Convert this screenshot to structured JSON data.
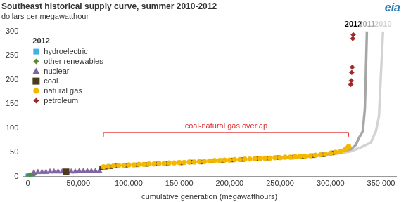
{
  "chart_data": {
    "type": "scatter",
    "title": "Southeast historical supply curve, summer 2010-2012",
    "subtitle": "dollars per megawatthour",
    "x_label": "cumulative generation (megawatthours)",
    "logo_text": "eia",
    "legend": "upper left",
    "legend_title": "2012",
    "grid": false,
    "xlim": [
      -5000,
      365000
    ],
    "xticks": [
      0,
      {
        "value": 50000,
        "label": "50,000"
      },
      {
        "value": 100000,
        "label": "100,000"
      },
      {
        "value": 150000,
        "label": "150,000"
      },
      {
        "value": 200000,
        "label": "200,000"
      },
      {
        "value": 250000,
        "label": "250,000"
      },
      {
        "value": 300000,
        "label": "300,000"
      },
      {
        "value": 350000,
        "label": "350,000"
      }
    ],
    "ylim": [
      0,
      300
    ],
    "yticks": [
      0,
      50,
      100,
      150,
      200,
      250,
      300
    ],
    "annotation": {
      "text": "coal-natural gas overlap",
      "color": "#e03030"
    },
    "series": [
      {
        "name": "hydroelectric",
        "color": "#3fb1e3",
        "marker": "square",
        "x": [
          0,
          1000,
          2000,
          3000,
          4000
        ],
        "values": [
          2,
          2,
          3,
          3,
          4
        ]
      },
      {
        "name": "other renewables",
        "color": "#5a8a2c",
        "marker": "diamond",
        "x": [
          500,
          1500,
          3000,
          5000,
          6500
        ],
        "values": [
          1,
          2,
          3,
          4,
          5
        ]
      },
      {
        "name": "nuclear",
        "color": "#8064a2",
        "marker": "triangle",
        "x": [
          6000,
          10000,
          14000,
          18000,
          22000,
          26000,
          30000,
          34000,
          43000,
          47000,
          51000,
          55000,
          59000,
          63000,
          67000,
          71000
        ],
        "values": [
          8,
          9,
          9,
          9,
          10,
          10,
          10,
          10,
          10,
          10,
          11,
          11,
          11,
          11,
          11,
          11
        ]
      },
      {
        "name": "coal",
        "color": "#4d3a1a",
        "marker": "square",
        "x": [
          38000,
          73000,
          77000,
          82000,
          88000,
          97000,
          108000,
          118000,
          128000,
          138000,
          152000,
          162000,
          172000,
          183000,
          193000,
          203000,
          213000,
          228000,
          238000,
          248000,
          262000,
          272000,
          283000,
          293000,
          302000
        ],
        "values": [
          10,
          18,
          19,
          20,
          22,
          23,
          24,
          25,
          26,
          27,
          28,
          30,
          30,
          32,
          33,
          34,
          35,
          37,
          38,
          39,
          40,
          41,
          43,
          45,
          49
        ]
      },
      {
        "name": "natural gas",
        "color": "#f5b800",
        "marker": "circle",
        "x": [
          75000,
          80000,
          85000,
          90000,
          95000,
          100000,
          105000,
          110000,
          115000,
          120000,
          125000,
          130000,
          135000,
          140000,
          145000,
          150000,
          155000,
          160000,
          165000,
          170000,
          175000,
          180000,
          185000,
          190000,
          195000,
          200000,
          205000,
          210000,
          215000,
          220000,
          225000,
          230000,
          235000,
          240000,
          245000,
          250000,
          255000,
          260000,
          265000,
          270000,
          275000,
          280000,
          285000,
          290000,
          295000,
          300000,
          305000,
          310000,
          314000,
          316000,
          318000
        ],
        "values": [
          20,
          21,
          22,
          23,
          23,
          24,
          24,
          25,
          25,
          26,
          26,
          27,
          27,
          28,
          28,
          29,
          29,
          30,
          30,
          31,
          31,
          32,
          33,
          33,
          34,
          34,
          35,
          35,
          36,
          36,
          37,
          37,
          38,
          38,
          39,
          39,
          40,
          40,
          41,
          42,
          42,
          43,
          44,
          45,
          46,
          48,
          50,
          52,
          55,
          58,
          62
        ]
      },
      {
        "name": "petroleum",
        "color": "#a0282a",
        "marker": "diamond",
        "x": [
          320000,
          320500,
          321000,
          321500,
          322000,
          322500
        ],
        "values": [
          190,
          198,
          215,
          226,
          285,
          293
        ]
      }
    ],
    "background_series": [
      {
        "name": "2011",
        "color": "#a6a6a6",
        "line_style": "solid",
        "x": [
          250000,
          280000,
          300000,
          310000,
          320000,
          325000,
          328000,
          332000,
          334000,
          335000,
          336000
        ],
        "values": [
          38,
          42,
          47,
          51,
          56,
          65,
          79,
          94,
          140,
          216,
          300
        ]
      },
      {
        "name": "2010",
        "color": "#d3d3d3",
        "line_style": "solid",
        "x": [
          250000,
          280000,
          300000,
          320000,
          330000,
          340000,
          345000,
          348000,
          350000,
          352000
        ],
        "values": [
          37,
          41,
          45,
          52,
          60,
          70,
          94,
          125,
          216,
          300
        ]
      }
    ]
  }
}
